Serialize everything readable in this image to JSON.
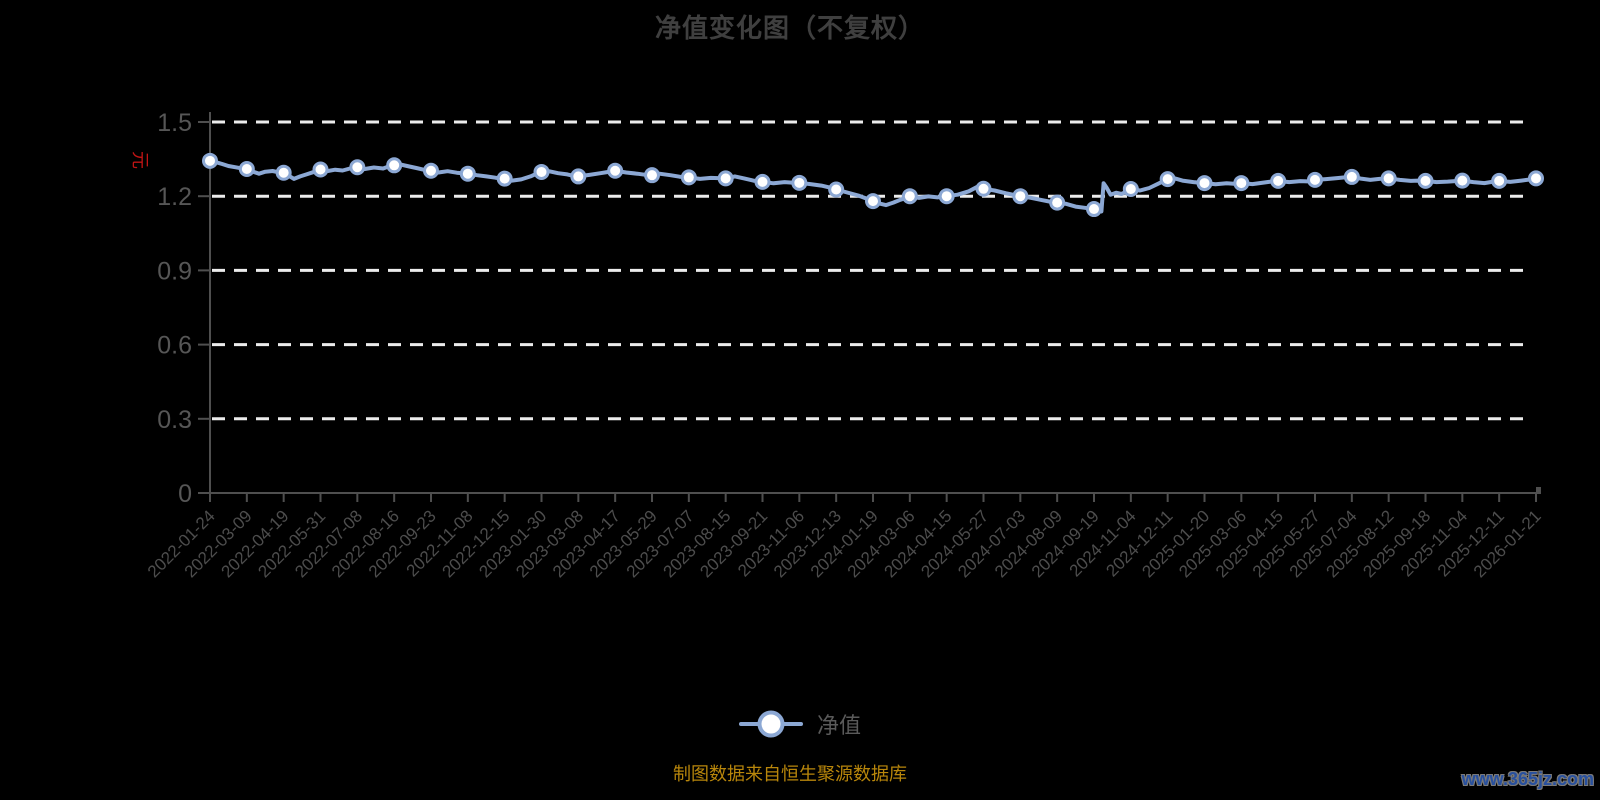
{
  "title": "净值变化图（不复权）",
  "y_axis": {
    "unit": "元",
    "tick_labels": [
      "0",
      "0.3",
      "0.6",
      "0.9",
      "1.2",
      "1.5"
    ]
  },
  "legend": {
    "label": "净值"
  },
  "footer": {
    "source": "制图数据来自恒生聚源数据库",
    "watermark": "www.365jz.com"
  },
  "colors": {
    "background": "#000000",
    "title": "#3f3f3f",
    "axis": "#4f4f4f",
    "axis_label": "#4d4d4d",
    "grid": "#ececec",
    "line": "#8ca8d4",
    "marker_fill": "#ffffff",
    "unit_red": "#c01414",
    "source_text": "#b8860b",
    "watermark_blue": "#28509e"
  },
  "chart_data": {
    "type": "line",
    "title": "净值变化图（不复权）",
    "series_name": "净值",
    "ylabel_unit": "元",
    "ylim": [
      0,
      1.5
    ],
    "y_ticks": [
      0,
      0.3,
      0.6,
      0.9,
      1.2,
      1.5
    ],
    "grid": "horizontal dashed white",
    "legend_position": "bottom-center",
    "categories": [
      "2022-01-24",
      "2022-03-09",
      "2022-04-19",
      "2022-05-31",
      "2022-07-08",
      "2022-08-16",
      "2022-09-23",
      "2022-11-08",
      "2022-12-15",
      "2023-01-30",
      "2023-03-08",
      "2023-04-17",
      "2023-05-29",
      "2023-07-07",
      "2023-08-15",
      "2023-09-21",
      "2023-11-06",
      "2023-12-13",
      "2024-01-19",
      "2024-03-06",
      "2024-04-15",
      "2024-05-27",
      "2024-07-03",
      "2024-08-09",
      "2024-09-19",
      "2024-11-04",
      "2024-12-11",
      "2025-01-20",
      "2025-03-06",
      "2025-04-15",
      "2025-05-27",
      "2025-07-04",
      "2025-08-12",
      "2025-09-18",
      "2025-11-04",
      "2025-12-11",
      "2026-01-21"
    ],
    "marker_values": [
      1.343,
      1.31,
      1.295,
      1.308,
      1.317,
      1.325,
      1.303,
      1.291,
      1.271,
      1.298,
      1.28,
      1.303,
      1.285,
      1.276,
      1.272,
      1.258,
      1.254,
      1.227,
      1.18,
      1.2,
      1.2,
      1.23,
      1.2,
      1.174,
      1.148,
      1.229,
      1.269,
      1.253,
      1.253,
      1.262,
      1.266,
      1.278,
      1.272,
      1.262,
      1.263,
      1.262,
      1.272
    ],
    "line": [
      [
        0,
        1.343
      ],
      [
        0.15,
        1.338
      ],
      [
        0.33,
        1.33
      ],
      [
        0.5,
        1.322
      ],
      [
        0.7,
        1.317
      ],
      [
        0.85,
        1.313
      ],
      [
        1,
        1.31
      ],
      [
        1.15,
        1.3
      ],
      [
        1.33,
        1.291
      ],
      [
        1.5,
        1.299
      ],
      [
        1.7,
        1.302
      ],
      [
        1.85,
        1.297
      ],
      [
        2,
        1.295
      ],
      [
        2.12,
        1.284
      ],
      [
        2.28,
        1.27
      ],
      [
        2.45,
        1.28
      ],
      [
        2.62,
        1.288
      ],
      [
        2.8,
        1.297
      ],
      [
        3,
        1.308
      ],
      [
        3.2,
        1.302
      ],
      [
        3.4,
        1.307
      ],
      [
        3.6,
        1.304
      ],
      [
        3.8,
        1.312
      ],
      [
        4,
        1.317
      ],
      [
        4.2,
        1.31
      ],
      [
        4.45,
        1.316
      ],
      [
        4.7,
        1.312
      ],
      [
        4.85,
        1.32
      ],
      [
        5,
        1.325
      ],
      [
        5.15,
        1.329
      ],
      [
        5.35,
        1.322
      ],
      [
        5.6,
        1.314
      ],
      [
        5.8,
        1.307
      ],
      [
        6,
        1.303
      ],
      [
        6.2,
        1.296
      ],
      [
        6.45,
        1.301
      ],
      [
        6.7,
        1.295
      ],
      [
        6.85,
        1.293
      ],
      [
        7,
        1.291
      ],
      [
        7.25,
        1.285
      ],
      [
        7.5,
        1.28
      ],
      [
        7.75,
        1.275
      ],
      [
        8,
        1.271
      ],
      [
        8.2,
        1.263
      ],
      [
        8.45,
        1.268
      ],
      [
        8.7,
        1.28
      ],
      [
        8.85,
        1.29
      ],
      [
        9,
        1.298
      ],
      [
        9.2,
        1.301
      ],
      [
        9.45,
        1.293
      ],
      [
        9.7,
        1.288
      ],
      [
        9.85,
        1.283
      ],
      [
        10,
        1.28
      ],
      [
        10.3,
        1.286
      ],
      [
        10.6,
        1.293
      ],
      [
        10.8,
        1.298
      ],
      [
        11,
        1.303
      ],
      [
        11.3,
        1.296
      ],
      [
        11.6,
        1.291
      ],
      [
        11.8,
        1.287
      ],
      [
        12,
        1.285
      ],
      [
        12.2,
        1.291
      ],
      [
        12.5,
        1.285
      ],
      [
        12.75,
        1.279
      ],
      [
        13,
        1.276
      ],
      [
        13.3,
        1.27
      ],
      [
        13.6,
        1.274
      ],
      [
        13.8,
        1.273
      ],
      [
        14,
        1.272
      ],
      [
        14.25,
        1.28
      ],
      [
        14.5,
        1.272
      ],
      [
        14.75,
        1.263
      ],
      [
        15,
        1.258
      ],
      [
        15.3,
        1.252
      ],
      [
        15.6,
        1.257
      ],
      [
        15.8,
        1.255
      ],
      [
        16,
        1.254
      ],
      [
        16.3,
        1.249
      ],
      [
        16.6,
        1.243
      ],
      [
        16.8,
        1.236
      ],
      [
        17,
        1.227
      ],
      [
        17.3,
        1.215
      ],
      [
        17.6,
        1.203
      ],
      [
        17.8,
        1.192
      ],
      [
        18,
        1.18
      ],
      [
        18.18,
        1.17
      ],
      [
        18.35,
        1.164
      ],
      [
        18.55,
        1.174
      ],
      [
        18.75,
        1.186
      ],
      [
        18.9,
        1.193
      ],
      [
        19,
        1.2
      ],
      [
        19.25,
        1.193
      ],
      [
        19.5,
        1.199
      ],
      [
        19.75,
        1.195
      ],
      [
        20,
        1.2
      ],
      [
        20.3,
        1.206
      ],
      [
        20.6,
        1.22
      ],
      [
        20.82,
        1.237
      ],
      [
        21,
        1.23
      ],
      [
        21.3,
        1.223
      ],
      [
        21.6,
        1.212
      ],
      [
        21.8,
        1.206
      ],
      [
        22,
        1.2
      ],
      [
        22.3,
        1.193
      ],
      [
        22.6,
        1.184
      ],
      [
        22.8,
        1.178
      ],
      [
        23,
        1.174
      ],
      [
        23.25,
        1.169
      ],
      [
        23.5,
        1.158
      ],
      [
        23.75,
        1.153
      ],
      [
        24,
        1.148
      ],
      [
        24.12,
        1.142
      ],
      [
        24.2,
        1.138
      ],
      [
        24.26,
        1.252
      ],
      [
        24.34,
        1.235
      ],
      [
        24.45,
        1.206
      ],
      [
        24.6,
        1.214
      ],
      [
        24.75,
        1.209
      ],
      [
        24.9,
        1.221
      ],
      [
        25,
        1.229
      ],
      [
        25.25,
        1.223
      ],
      [
        25.5,
        1.233
      ],
      [
        25.75,
        1.251
      ],
      [
        26,
        1.269
      ],
      [
        26.15,
        1.274
      ],
      [
        26.4,
        1.263
      ],
      [
        26.7,
        1.257
      ],
      [
        27,
        1.253
      ],
      [
        27.3,
        1.248
      ],
      [
        27.6,
        1.252
      ],
      [
        27.8,
        1.25
      ],
      [
        28,
        1.253
      ],
      [
        28.3,
        1.249
      ],
      [
        28.6,
        1.255
      ],
      [
        28.8,
        1.259
      ],
      [
        29,
        1.262
      ],
      [
        29.3,
        1.257
      ],
      [
        29.6,
        1.261
      ],
      [
        29.8,
        1.26
      ],
      [
        30,
        1.266
      ],
      [
        30.3,
        1.269
      ],
      [
        30.6,
        1.273
      ],
      [
        30.8,
        1.276
      ],
      [
        31,
        1.278
      ],
      [
        31.25,
        1.271
      ],
      [
        31.5,
        1.266
      ],
      [
        31.75,
        1.27
      ],
      [
        32,
        1.272
      ],
      [
        32.3,
        1.266
      ],
      [
        32.6,
        1.262
      ],
      [
        32.8,
        1.263
      ],
      [
        33,
        1.262
      ],
      [
        33.3,
        1.257
      ],
      [
        33.6,
        1.259
      ],
      [
        33.8,
        1.261
      ],
      [
        34,
        1.263
      ],
      [
        34.3,
        1.257
      ],
      [
        34.6,
        1.253
      ],
      [
        34.8,
        1.258
      ],
      [
        35,
        1.262
      ],
      [
        35.3,
        1.258
      ],
      [
        35.6,
        1.263
      ],
      [
        35.8,
        1.267
      ],
      [
        36,
        1.272
      ]
    ]
  }
}
